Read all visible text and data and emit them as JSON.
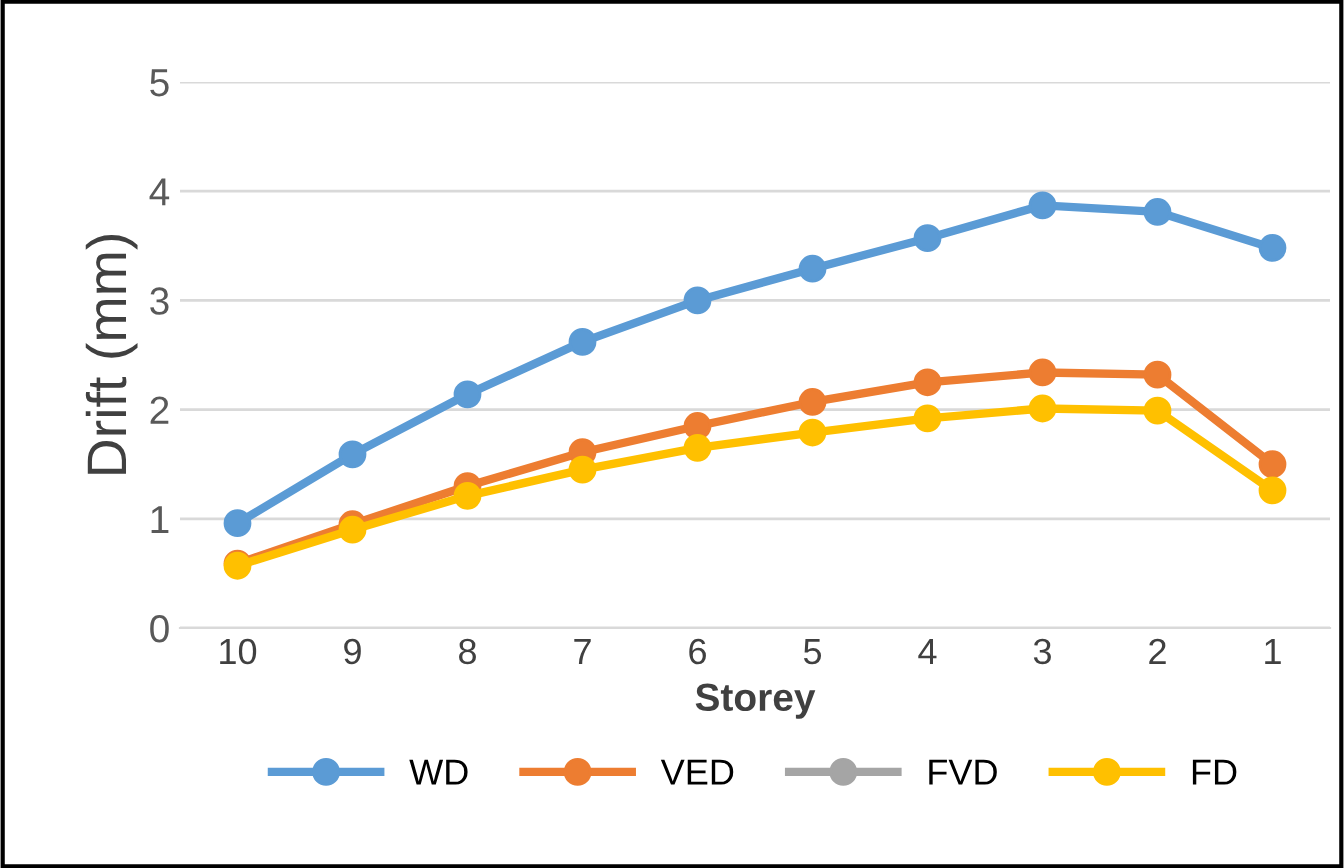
{
  "chart_data": {
    "type": "line",
    "xlabel": "Storey",
    "ylabel": "Drift (mm)",
    "categories": [
      "10",
      "9",
      "8",
      "7",
      "6",
      "5",
      "4",
      "3",
      "2",
      "1"
    ],
    "ylim": [
      0,
      5
    ],
    "yticks": [
      0,
      1,
      2,
      3,
      4,
      5
    ],
    "grid": "y",
    "legend": "bottom",
    "marker": "circle",
    "line_style": "solid",
    "series": [
      {
        "name": "WD",
        "color": "#5b9bd5",
        "values": [
          0.96,
          1.59,
          2.14,
          2.62,
          3.0,
          3.29,
          3.57,
          3.87,
          3.81,
          3.48
        ]
      },
      {
        "name": "VED",
        "color": "#ed7d31",
        "values": [
          0.59,
          0.95,
          1.3,
          1.61,
          1.85,
          2.07,
          2.25,
          2.34,
          2.32,
          1.5
        ]
      },
      {
        "name": "FVD",
        "color": "#a5a5a5",
        "values": [
          null,
          null,
          null,
          null,
          null,
          null,
          null,
          null,
          null,
          null
        ]
      },
      {
        "name": "FD",
        "color": "#ffc000",
        "values": [
          0.57,
          0.9,
          1.21,
          1.45,
          1.65,
          1.79,
          1.92,
          2.01,
          1.99,
          1.26
        ]
      }
    ]
  }
}
